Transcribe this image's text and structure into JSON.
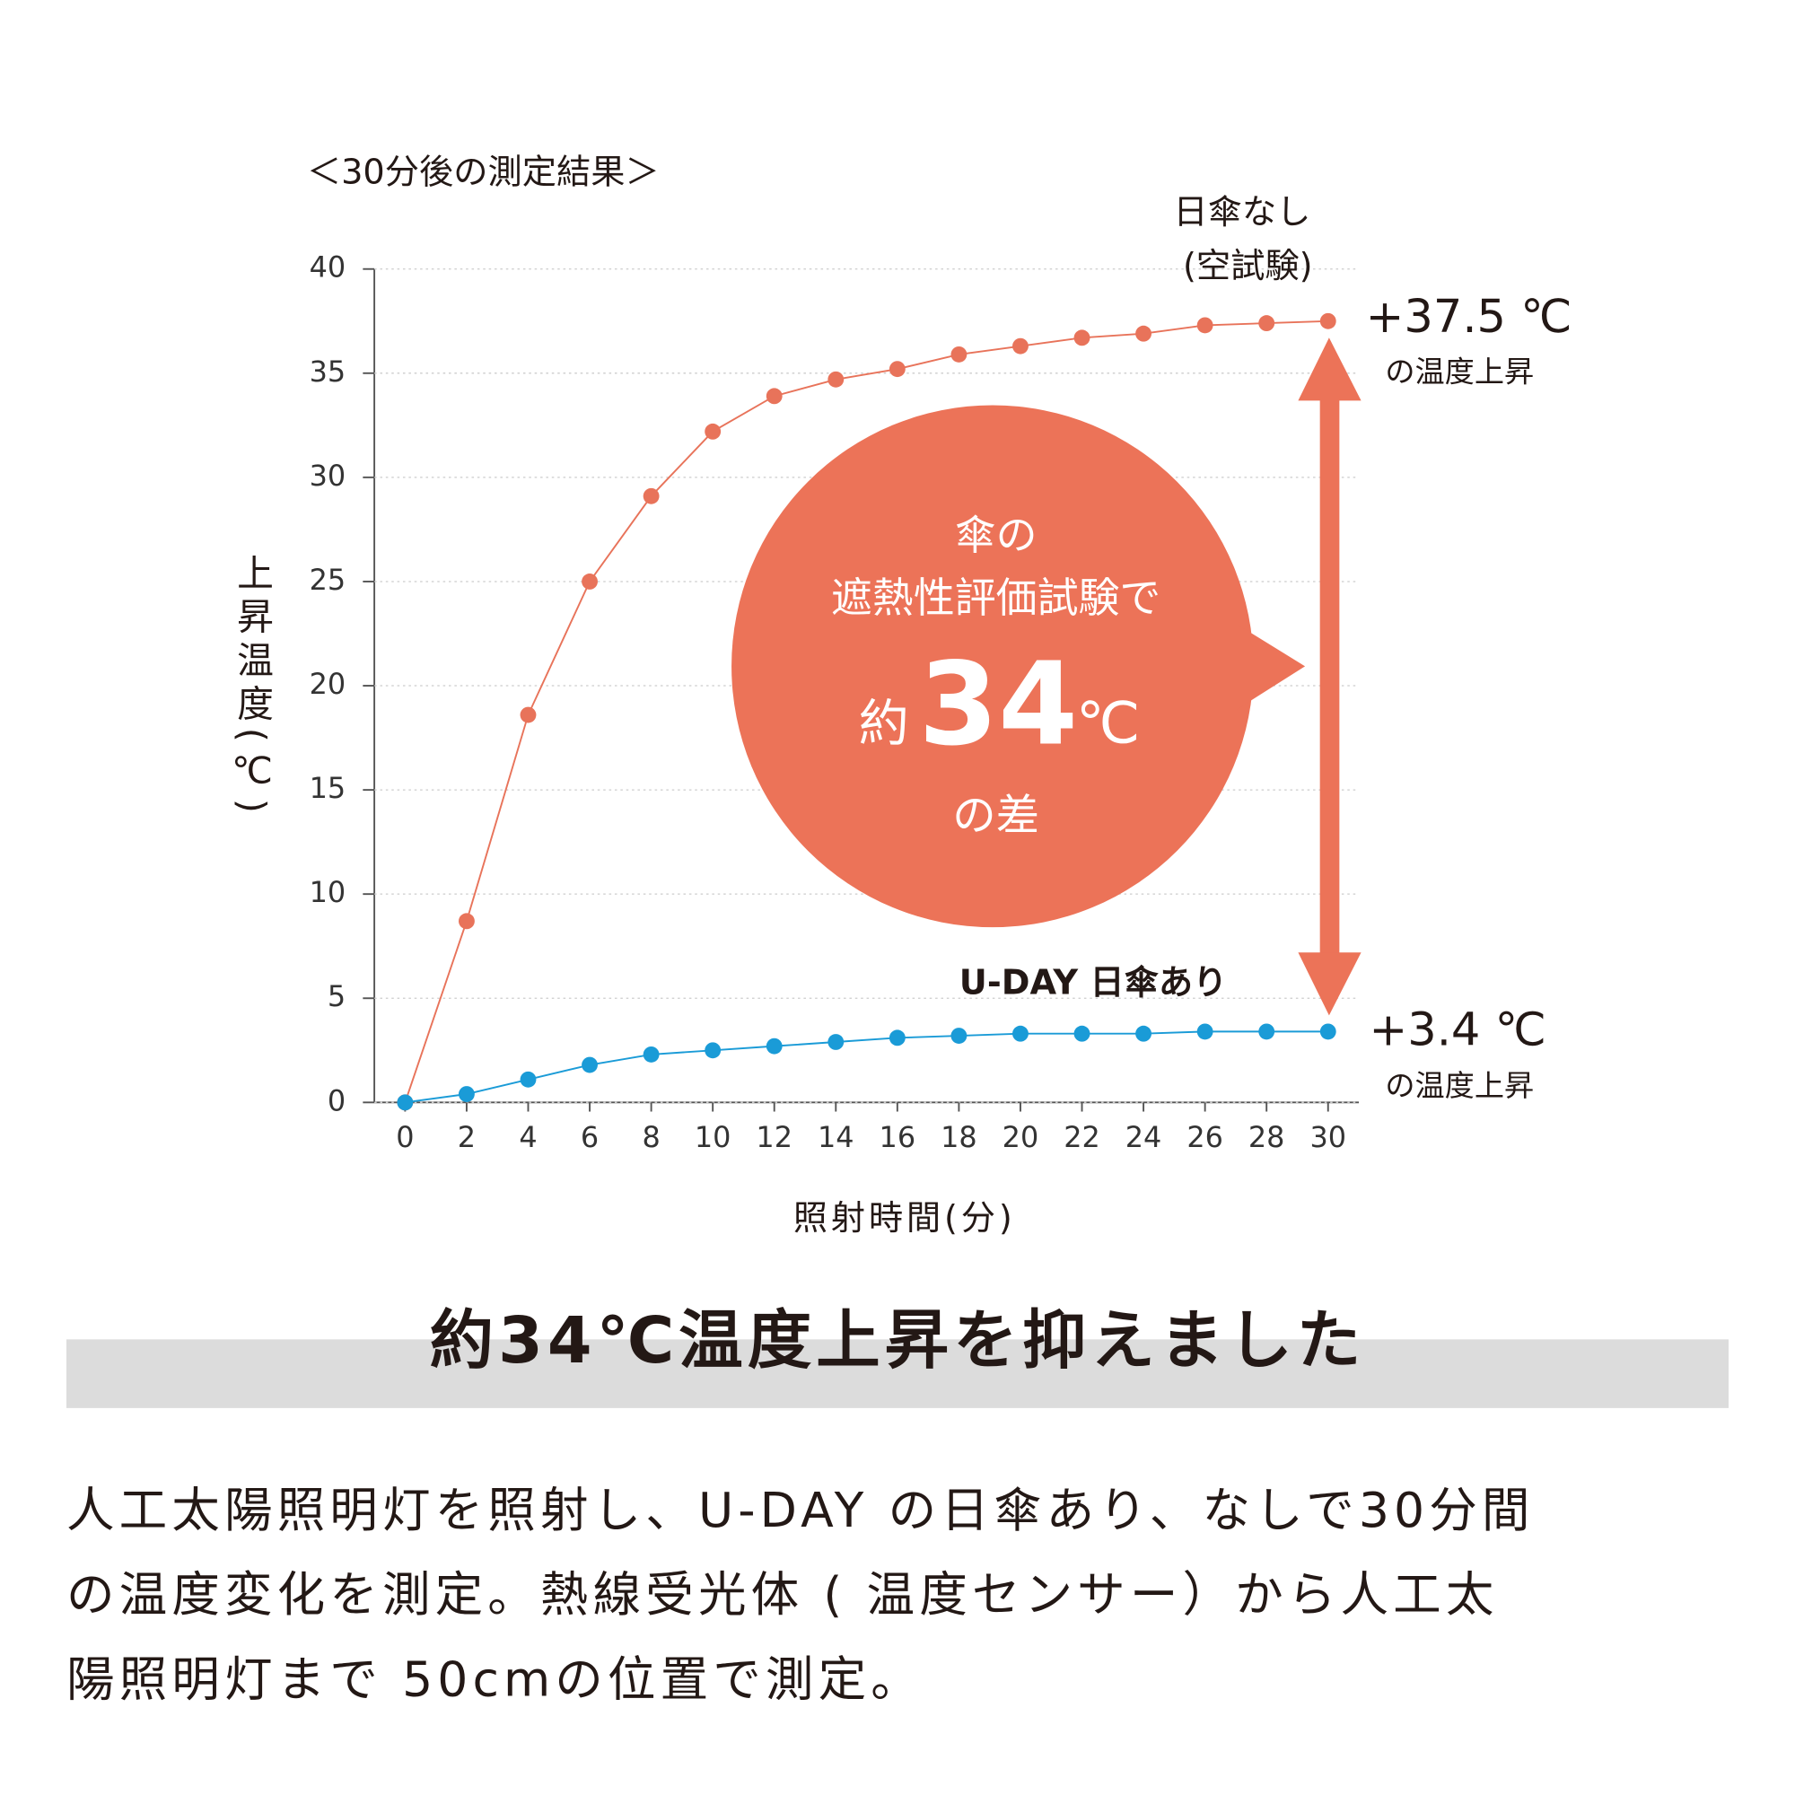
{
  "chart_data": {
    "type": "line",
    "title": "＜30分後の測定結果＞",
    "y_label": "上昇温度(℃)",
    "x_label": "照射時間(分)",
    "x": [
      0,
      2,
      4,
      6,
      8,
      10,
      12,
      14,
      16,
      18,
      20,
      22,
      24,
      26,
      28,
      30
    ],
    "series": [
      {
        "name": "日傘なし",
        "color": "#e8735a",
        "values": [
          0,
          8.7,
          18.6,
          25,
          29.1,
          32.2,
          33.9,
          34.7,
          35.2,
          35.9,
          36.3,
          36.7,
          36.9,
          37.3,
          37.4,
          37.5
        ]
      },
      {
        "name": "U-DAY 日傘あり",
        "color": "#1a9bd7",
        "values": [
          0,
          0.4,
          1.1,
          1.8,
          2.3,
          2.5,
          2.7,
          2.9,
          3.1,
          3.2,
          3.3,
          3.3,
          3.3,
          3.4,
          3.4,
          3.4
        ]
      }
    ],
    "xlim": [
      -1,
      31
    ],
    "xticks": [
      0,
      2,
      4,
      6,
      8,
      10,
      12,
      14,
      16,
      18,
      20,
      22,
      24,
      26,
      28,
      30
    ],
    "ylim": [
      0,
      40
    ],
    "yticks": [
      0,
      5,
      10,
      15,
      20,
      25,
      30,
      35,
      40
    ],
    "grid": true,
    "annotations": {
      "control_note": "(空試験)",
      "top_value": "+37.5 ℃",
      "top_caption": "の温度上昇",
      "bottom_value": "+3.4 ℃",
      "bottom_caption": "の温度上昇",
      "bubble_line1": "傘の",
      "bubble_line2": "遮熱性評価試験で",
      "bubble_prefix": "約",
      "bubble_number": "34",
      "bubble_unit": "℃",
      "bubble_line4": "の差"
    }
  },
  "headline": "約34℃温度上昇を抑えました",
  "paragraph": [
    "人工太陽照明灯を照射し、U-DAY の日傘あり、なしで30分間",
    "の温度変化を測定。熱線受光体 ( 温度センサー）から人工太",
    "陽照明灯まで 50cmの位置で測定。"
  ]
}
